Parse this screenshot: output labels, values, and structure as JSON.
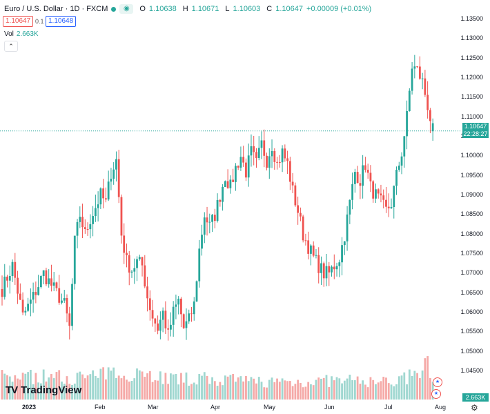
{
  "header": {
    "symbol": "Euro / U.S. Dollar · 1D · FXCM",
    "open_label": "O",
    "open": "1.10638",
    "high_label": "H",
    "high": "1.10671",
    "low_label": "L",
    "low": "1.10603",
    "close_label": "C",
    "close": "1.10647",
    "change": "+0.00009 (+0.01%)"
  },
  "trade": {
    "bid": "1.10647",
    "spread": "0.1",
    "ask": "1.10648"
  },
  "volume": {
    "label": "Vol",
    "value": "2.663K"
  },
  "brand": {
    "logo": "TV",
    "name": "TradingView"
  },
  "price_axis": {
    "labels": [
      "1.13500",
      "1.13000",
      "1.12500",
      "1.12000",
      "1.11500",
      "1.11000",
      "1.10500",
      "1.10000",
      "1.09500",
      "1.09000",
      "1.08500",
      "1.08000",
      "1.07500",
      "1.07000",
      "1.06500",
      "1.06000",
      "1.05500",
      "1.05000",
      "1.04500"
    ],
    "current_price": "1.10647",
    "countdown": "22:28:27",
    "volume_tag": "2.663K"
  },
  "time_axis": {
    "labels": [
      "2023",
      "Feb",
      "Mar",
      "Apr",
      "May",
      "Jun",
      "Jul",
      "Aug"
    ]
  },
  "colors": {
    "up": "#26a69a",
    "down": "#ef5350",
    "up_vol": "#9fd7d0",
    "down_vol": "#f5a9a7"
  },
  "chart_data": {
    "type": "candlestick",
    "title": "Euro / U.S. Dollar · 1D · FXCM",
    "ylim": [
      1.0425,
      1.1375
    ],
    "x_ticks": [
      "2023",
      "Feb",
      "Mar",
      "Apr",
      "May",
      "Jun",
      "Jul",
      "Aug"
    ],
    "anchors": [
      [
        0,
        1.066
      ],
      [
        4,
        1.072
      ],
      [
        8,
        1.059
      ],
      [
        12,
        1.064
      ],
      [
        16,
        1.07
      ],
      [
        20,
        1.066
      ],
      [
        24,
        1.062
      ],
      [
        26,
        1.056
      ],
      [
        28,
        1.078
      ],
      [
        30,
        1.085
      ],
      [
        32,
        1.08
      ],
      [
        34,
        1.084
      ],
      [
        36,
        1.087
      ],
      [
        38,
        1.09
      ],
      [
        40,
        1.088
      ],
      [
        42,
        1.096
      ],
      [
        44,
        1.099
      ],
      [
        46,
        1.08
      ],
      [
        48,
        1.073
      ],
      [
        50,
        1.071
      ],
      [
        52,
        1.073
      ],
      [
        54,
        1.072
      ],
      [
        56,
        1.064
      ],
      [
        58,
        1.059
      ],
      [
        60,
        1.056
      ],
      [
        62,
        1.06
      ],
      [
        64,
        1.054
      ],
      [
        66,
        1.06
      ],
      [
        68,
        1.063
      ],
      [
        70,
        1.056
      ],
      [
        72,
        1.058
      ],
      [
        74,
        1.062
      ],
      [
        76,
        1.076
      ],
      [
        78,
        1.085
      ],
      [
        80,
        1.082
      ],
      [
        82,
        1.085
      ],
      [
        84,
        1.09
      ],
      [
        86,
        1.095
      ],
      [
        88,
        1.092
      ],
      [
        90,
        1.097
      ],
      [
        92,
        1.1
      ],
      [
        94,
        1.096
      ],
      [
        96,
        1.101
      ],
      [
        98,
        1.098
      ],
      [
        100,
        1.103
      ],
      [
        102,
        1.099
      ],
      [
        104,
        1.103
      ],
      [
        106,
        1.098
      ],
      [
        108,
        1.101
      ],
      [
        110,
        1.098
      ],
      [
        112,
        1.091
      ],
      [
        114,
        1.086
      ],
      [
        116,
        1.08
      ],
      [
        118,
        1.077
      ],
      [
        120,
        1.074
      ],
      [
        122,
        1.072
      ],
      [
        124,
        1.07
      ],
      [
        126,
        1.07
      ],
      [
        128,
        1.072
      ],
      [
        130,
        1.074
      ],
      [
        132,
        1.08
      ],
      [
        134,
        1.088
      ],
      [
        136,
        1.096
      ],
      [
        138,
        1.094
      ],
      [
        140,
        1.098
      ],
      [
        142,
        1.092
      ],
      [
        144,
        1.09
      ],
      [
        146,
        1.088
      ],
      [
        148,
        1.086
      ],
      [
        150,
        1.088
      ],
      [
        152,
        1.095
      ],
      [
        154,
        1.101
      ],
      [
        156,
        1.11
      ],
      [
        158,
        1.123
      ],
      [
        160,
        1.122
      ],
      [
        162,
        1.119
      ],
      [
        164,
        1.113
      ],
      [
        166,
        1.1065
      ]
    ],
    "volume_anchors": [
      [
        0,
        1.0
      ],
      [
        30,
        0.95
      ],
      [
        45,
        1.1
      ],
      [
        50,
        1.2
      ],
      [
        60,
        1.0
      ],
      [
        68,
        0.85
      ],
      [
        75,
        0.9
      ],
      [
        90,
        0.8
      ],
      [
        110,
        0.75
      ],
      [
        130,
        0.8
      ],
      [
        150,
        0.75
      ],
      [
        162,
        1.1
      ],
      [
        164,
        1.6
      ],
      [
        166,
        0.8
      ]
    ]
  }
}
